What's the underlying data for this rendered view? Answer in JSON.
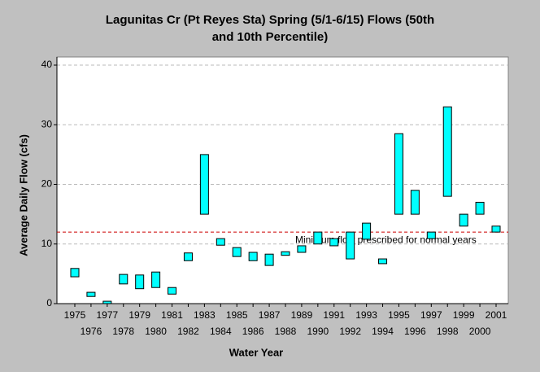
{
  "chart_data": {
    "type": "floating-bar",
    "title": [
      "Lagunitas Cr (Pt Reyes Sta) Spring (5/1-6/15) Flows (50th",
      "and 10th Percentile)"
    ],
    "x_label": "Water Year",
    "y_label": "Average Daily Flow (cfs)",
    "categories": [
      "1975",
      "1976",
      "1977",
      "1978",
      "1979",
      "1980",
      "1981",
      "1982",
      "1983",
      "1984",
      "1985",
      "1986",
      "1987",
      "1988",
      "1989",
      "1990",
      "1991",
      "1992",
      "1993",
      "1994",
      "1995",
      "1996",
      "1997",
      "1998",
      "1999",
      "2000",
      "2001"
    ],
    "low": [
      4.5,
      1.2,
      0,
      3.3,
      2.5,
      2.7,
      1.6,
      7.2,
      15,
      9.8,
      7.9,
      7.2,
      6.4,
      8.1,
      8.6,
      10,
      9.7,
      7.5,
      10.8,
      6.7,
      15,
      15,
      10.9,
      18,
      13,
      15,
      12
    ],
    "high": [
      5.9,
      1.9,
      0.4,
      4.9,
      4.8,
      5.3,
      2.7,
      8.5,
      25,
      10.9,
      9.4,
      8.6,
      8.3,
      8.7,
      9.7,
      12,
      10.9,
      12,
      13.5,
      7.5,
      28.5,
      19,
      12,
      33,
      15,
      17,
      13
    ],
    "color": "#00ffff",
    "ylim": [
      0,
      40
    ],
    "yticks": [
      0,
      10,
      20,
      30,
      40
    ],
    "grid": true,
    "reference_line": {
      "value": 12,
      "label": "Minimum flow prescribed for normal years",
      "color": "#cc0000"
    }
  }
}
